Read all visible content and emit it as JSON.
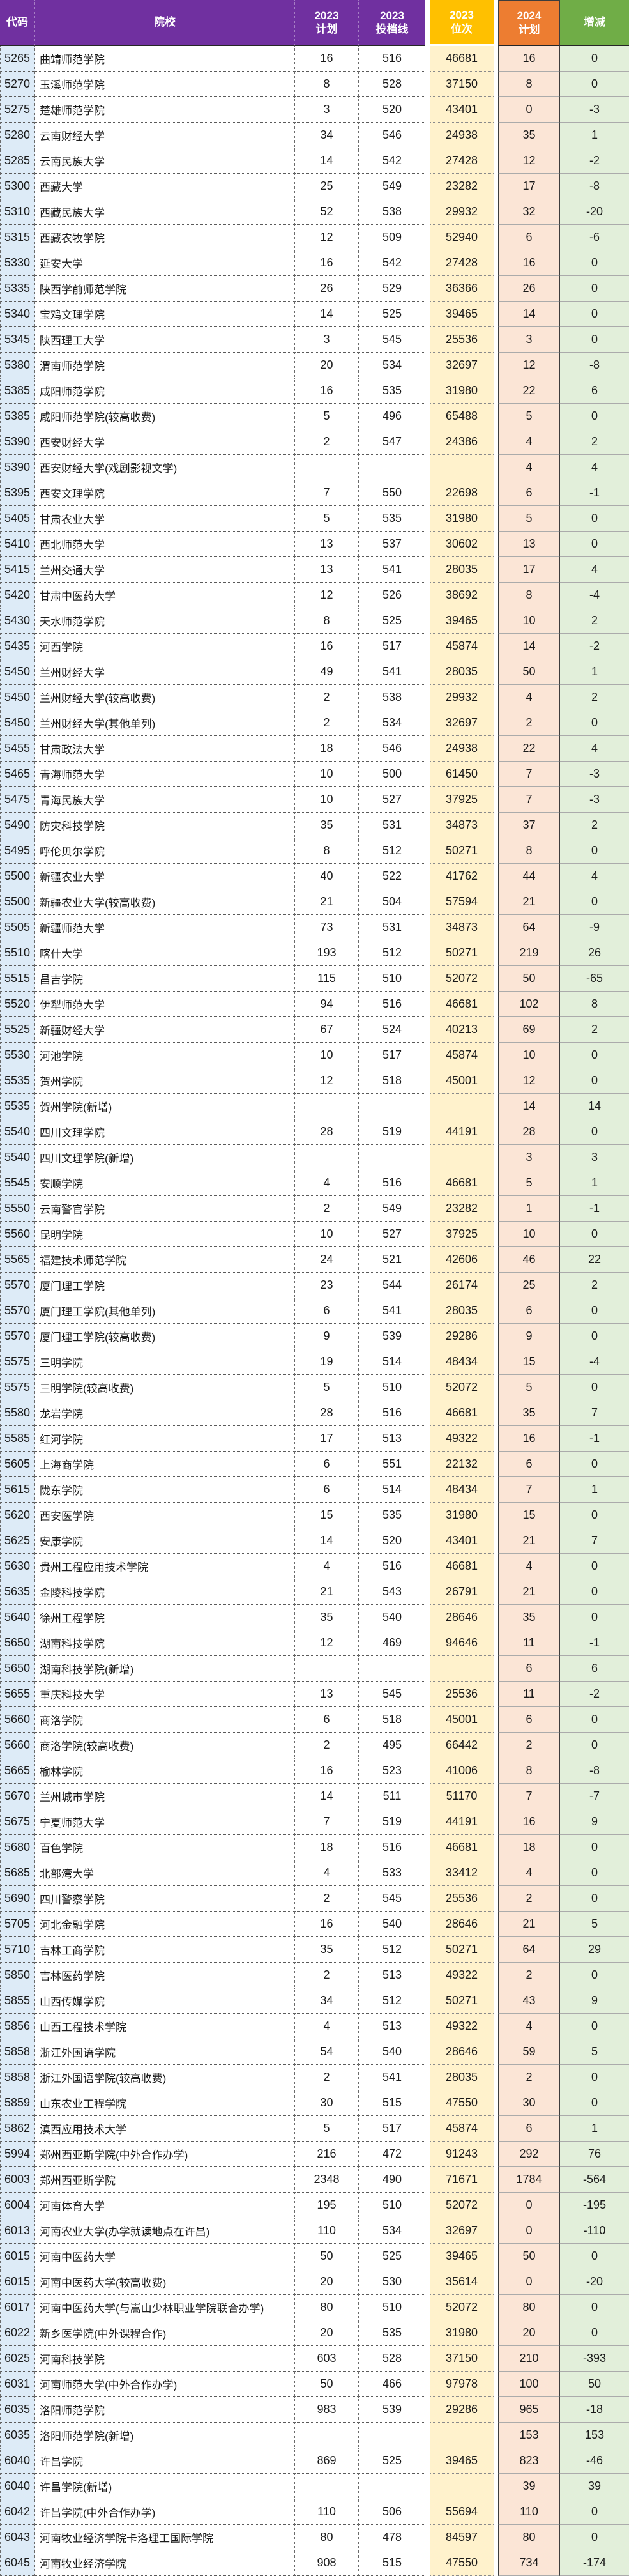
{
  "colors": {
    "header_purple": "#7030A0",
    "header_gold": "#FFC000",
    "header_orange": "#ED7D31",
    "header_green": "#70AD47",
    "col_code_bg": "#DDEBF7",
    "col_rank_bg": "#FFF2CC",
    "col_plan2024_bg": "#FBE5D6",
    "col_delta_bg": "#E2EFDA",
    "header_text": "#FFFFFF",
    "body_text": "#1A1A1A"
  },
  "header": {
    "columns": [
      {
        "key": "code",
        "l1": "代码",
        "l2": ""
      },
      {
        "key": "school",
        "l1": "院校",
        "l2": ""
      },
      {
        "key": "plan2023",
        "l1": "2023",
        "l2": "计划"
      },
      {
        "key": "line2023",
        "l1": "2023",
        "l2": "投档线"
      },
      {
        "key": "rank2023",
        "l1": "2023",
        "l2": "位次"
      },
      {
        "key": "plan2024",
        "l1": "2024",
        "l2": "计划"
      },
      {
        "key": "delta",
        "l1": "增减",
        "l2": ""
      }
    ]
  },
  "rows": [
    [
      "5265",
      "曲靖师范学院",
      "16",
      "516",
      "46681",
      "16",
      "0"
    ],
    [
      "5270",
      "玉溪师范学院",
      "8",
      "528",
      "37150",
      "8",
      "0"
    ],
    [
      "5275",
      "楚雄师范学院",
      "3",
      "520",
      "43401",
      "0",
      "-3"
    ],
    [
      "5280",
      "云南财经大学",
      "34",
      "546",
      "24938",
      "35",
      "1"
    ],
    [
      "5285",
      "云南民族大学",
      "14",
      "542",
      "27428",
      "12",
      "-2"
    ],
    [
      "5300",
      "西藏大学",
      "25",
      "549",
      "23282",
      "17",
      "-8"
    ],
    [
      "5310",
      "西藏民族大学",
      "52",
      "538",
      "29932",
      "32",
      "-20"
    ],
    [
      "5315",
      "西藏农牧学院",
      "12",
      "509",
      "52940",
      "6",
      "-6"
    ],
    [
      "5330",
      "延安大学",
      "16",
      "542",
      "27428",
      "16",
      "0"
    ],
    [
      "5335",
      "陕西学前师范学院",
      "26",
      "529",
      "36366",
      "26",
      "0"
    ],
    [
      "5340",
      "宝鸡文理学院",
      "14",
      "525",
      "39465",
      "14",
      "0"
    ],
    [
      "5345",
      "陕西理工大学",
      "3",
      "545",
      "25536",
      "3",
      "0"
    ],
    [
      "5380",
      "渭南师范学院",
      "20",
      "534",
      "32697",
      "12",
      "-8"
    ],
    [
      "5385",
      "咸阳师范学院",
      "16",
      "535",
      "31980",
      "22",
      "6"
    ],
    [
      "5385",
      "咸阳师范学院(较高收费)",
      "5",
      "496",
      "65488",
      "5",
      "0"
    ],
    [
      "5390",
      "西安财经大学",
      "2",
      "547",
      "24386",
      "4",
      "2"
    ],
    [
      "5390",
      "西安财经大学(戏剧影视文学)",
      "",
      "",
      "",
      "4",
      "4"
    ],
    [
      "5395",
      "西安文理学院",
      "7",
      "550",
      "22698",
      "6",
      "-1"
    ],
    [
      "5405",
      "甘肃农业大学",
      "5",
      "535",
      "31980",
      "5",
      "0"
    ],
    [
      "5410",
      "西北师范大学",
      "13",
      "537",
      "30602",
      "13",
      "0"
    ],
    [
      "5415",
      "兰州交通大学",
      "13",
      "541",
      "28035",
      "17",
      "4"
    ],
    [
      "5420",
      "甘肃中医药大学",
      "12",
      "526",
      "38692",
      "8",
      "-4"
    ],
    [
      "5430",
      "天水师范学院",
      "8",
      "525",
      "39465",
      "10",
      "2"
    ],
    [
      "5435",
      "河西学院",
      "16",
      "517",
      "45874",
      "14",
      "-2"
    ],
    [
      "5450",
      "兰州财经大学",
      "49",
      "541",
      "28035",
      "50",
      "1"
    ],
    [
      "5450",
      "兰州财经大学(较高收费)",
      "2",
      "538",
      "29932",
      "4",
      "2"
    ],
    [
      "5450",
      "兰州财经大学(其他单列)",
      "2",
      "534",
      "32697",
      "2",
      "0"
    ],
    [
      "5455",
      "甘肃政法大学",
      "18",
      "546",
      "24938",
      "22",
      "4"
    ],
    [
      "5465",
      "青海师范大学",
      "10",
      "500",
      "61450",
      "7",
      "-3"
    ],
    [
      "5475",
      "青海民族大学",
      "10",
      "527",
      "37925",
      "7",
      "-3"
    ],
    [
      "5490",
      "防灾科技学院",
      "35",
      "531",
      "34873",
      "37",
      "2"
    ],
    [
      "5495",
      "呼伦贝尔学院",
      "8",
      "512",
      "50271",
      "8",
      "0"
    ],
    [
      "5500",
      "新疆农业大学",
      "40",
      "522",
      "41762",
      "44",
      "4"
    ],
    [
      "5500",
      "新疆农业大学(较高收费)",
      "21",
      "504",
      "57594",
      "21",
      "0"
    ],
    [
      "5505",
      "新疆师范大学",
      "73",
      "531",
      "34873",
      "64",
      "-9"
    ],
    [
      "5510",
      "喀什大学",
      "193",
      "512",
      "50271",
      "219",
      "26"
    ],
    [
      "5515",
      "昌吉学院",
      "115",
      "510",
      "52072",
      "50",
      "-65"
    ],
    [
      "5520",
      "伊犁师范大学",
      "94",
      "516",
      "46681",
      "102",
      "8"
    ],
    [
      "5525",
      "新疆财经大学",
      "67",
      "524",
      "40213",
      "69",
      "2"
    ],
    [
      "5530",
      "河池学院",
      "10",
      "517",
      "45874",
      "10",
      "0"
    ],
    [
      "5535",
      "贺州学院",
      "12",
      "518",
      "45001",
      "12",
      "0"
    ],
    [
      "5535",
      "贺州学院(新增)",
      "",
      "",
      "",
      "14",
      "14"
    ],
    [
      "5540",
      "四川文理学院",
      "28",
      "519",
      "44191",
      "28",
      "0"
    ],
    [
      "5540",
      "四川文理学院(新增)",
      "",
      "",
      "",
      "3",
      "3"
    ],
    [
      "5545",
      "安顺学院",
      "4",
      "516",
      "46681",
      "5",
      "1"
    ],
    [
      "5550",
      "云南警官学院",
      "2",
      "549",
      "23282",
      "1",
      "-1"
    ],
    [
      "5560",
      "昆明学院",
      "10",
      "527",
      "37925",
      "10",
      "0"
    ],
    [
      "5565",
      "福建技术师范学院",
      "24",
      "521",
      "42606",
      "46",
      "22"
    ],
    [
      "5570",
      "厦门理工学院",
      "23",
      "544",
      "26174",
      "25",
      "2"
    ],
    [
      "5570",
      "厦门理工学院(其他单列)",
      "6",
      "541",
      "28035",
      "6",
      "0"
    ],
    [
      "5570",
      "厦门理工学院(较高收费)",
      "9",
      "539",
      "29286",
      "9",
      "0"
    ],
    [
      "5575",
      "三明学院",
      "19",
      "514",
      "48434",
      "15",
      "-4"
    ],
    [
      "5575",
      "三明学院(较高收费)",
      "5",
      "510",
      "52072",
      "5",
      "0"
    ],
    [
      "5580",
      "龙岩学院",
      "28",
      "516",
      "46681",
      "35",
      "7"
    ],
    [
      "5585",
      "红河学院",
      "17",
      "513",
      "49322",
      "16",
      "-1"
    ],
    [
      "5605",
      "上海商学院",
      "6",
      "551",
      "22132",
      "6",
      "0"
    ],
    [
      "5615",
      "陇东学院",
      "6",
      "514",
      "48434",
      "7",
      "1"
    ],
    [
      "5620",
      "西安医学院",
      "15",
      "535",
      "31980",
      "15",
      "0"
    ],
    [
      "5625",
      "安康学院",
      "14",
      "520",
      "43401",
      "21",
      "7"
    ],
    [
      "5630",
      "贵州工程应用技术学院",
      "4",
      "516",
      "46681",
      "4",
      "0"
    ],
    [
      "5635",
      "金陵科技学院",
      "21",
      "543",
      "26791",
      "21",
      "0"
    ],
    [
      "5640",
      "徐州工程学院",
      "35",
      "540",
      "28646",
      "35",
      "0"
    ],
    [
      "5650",
      "湖南科技学院",
      "12",
      "469",
      "94646",
      "11",
      "-1"
    ],
    [
      "5650",
      "湖南科技学院(新增)",
      "",
      "",
      "",
      "6",
      "6"
    ],
    [
      "5655",
      "重庆科技大学",
      "13",
      "545",
      "25536",
      "11",
      "-2"
    ],
    [
      "5660",
      "商洛学院",
      "6",
      "518",
      "45001",
      "6",
      "0"
    ],
    [
      "5660",
      "商洛学院(较高收费)",
      "2",
      "495",
      "66442",
      "2",
      "0"
    ],
    [
      "5665",
      "榆林学院",
      "16",
      "523",
      "41006",
      "8",
      "-8"
    ],
    [
      "5670",
      "兰州城市学院",
      "14",
      "511",
      "51170",
      "7",
      "-7"
    ],
    [
      "5675",
      "宁夏师范大学",
      "7",
      "519",
      "44191",
      "16",
      "9"
    ],
    [
      "5680",
      "百色学院",
      "18",
      "516",
      "46681",
      "18",
      "0"
    ],
    [
      "5685",
      "北部湾大学",
      "4",
      "533",
      "33412",
      "4",
      "0"
    ],
    [
      "5690",
      "四川警察学院",
      "2",
      "545",
      "25536",
      "2",
      "0"
    ],
    [
      "5705",
      "河北金融学院",
      "16",
      "540",
      "28646",
      "21",
      "5"
    ],
    [
      "5710",
      "吉林工商学院",
      "35",
      "512",
      "50271",
      "64",
      "29"
    ],
    [
      "5850",
      "吉林医药学院",
      "2",
      "513",
      "49322",
      "2",
      "0"
    ],
    [
      "5855",
      "山西传媒学院",
      "34",
      "512",
      "50271",
      "43",
      "9"
    ],
    [
      "5856",
      "山西工程技术学院",
      "4",
      "513",
      "49322",
      "4",
      "0"
    ],
    [
      "5858",
      "浙江外国语学院",
      "54",
      "540",
      "28646",
      "59",
      "5"
    ],
    [
      "5858",
      "浙江外国语学院(较高收费)",
      "2",
      "541",
      "28035",
      "2",
      "0"
    ],
    [
      "5859",
      "山东农业工程学院",
      "30",
      "515",
      "47550",
      "30",
      "0"
    ],
    [
      "5862",
      "滇西应用技术大学",
      "5",
      "517",
      "45874",
      "6",
      "1"
    ],
    [
      "5994",
      "郑州西亚斯学院(中外合作办学)",
      "216",
      "472",
      "91243",
      "292",
      "76"
    ],
    [
      "6003",
      "郑州西亚斯学院",
      "2348",
      "490",
      "71671",
      "1784",
      "-564"
    ],
    [
      "6004",
      "河南体育大学",
      "195",
      "510",
      "52072",
      "0",
      "-195"
    ],
    [
      "6013",
      "河南农业大学(办学就读地点在许昌)",
      "110",
      "534",
      "32697",
      "0",
      "-110"
    ],
    [
      "6015",
      "河南中医药大学",
      "50",
      "525",
      "39465",
      "50",
      "0"
    ],
    [
      "6015",
      "河南中医药大学(较高收费)",
      "20",
      "530",
      "35614",
      "0",
      "-20"
    ],
    [
      "6017",
      "河南中医药大学(与嵩山少林职业学院联合办学)",
      "80",
      "510",
      "52072",
      "80",
      "0"
    ],
    [
      "6022",
      "新乡医学院(中外课程合作)",
      "20",
      "535",
      "31980",
      "20",
      "0"
    ],
    [
      "6025",
      "河南科技学院",
      "603",
      "528",
      "37150",
      "210",
      "-393"
    ],
    [
      "6031",
      "河南师范大学(中外合作办学)",
      "50",
      "466",
      "97978",
      "100",
      "50"
    ],
    [
      "6035",
      "洛阳师范学院",
      "983",
      "539",
      "29286",
      "965",
      "-18"
    ],
    [
      "6035",
      "洛阳师范学院(新增)",
      "",
      "",
      "",
      "153",
      "153"
    ],
    [
      "6040",
      "许昌学院",
      "869",
      "525",
      "39465",
      "823",
      "-46"
    ],
    [
      "6040",
      "许昌学院(新增)",
      "",
      "",
      "",
      "39",
      "39"
    ],
    [
      "6042",
      "许昌学院(中外合作办学)",
      "110",
      "506",
      "55694",
      "110",
      "0"
    ],
    [
      "6043",
      "河南牧业经济学院卡洛理工国际学院",
      "80",
      "478",
      "84597",
      "80",
      "0"
    ],
    [
      "6045",
      "河南牧业经济学院",
      "908",
      "515",
      "47550",
      "734",
      "-174"
    ]
  ]
}
